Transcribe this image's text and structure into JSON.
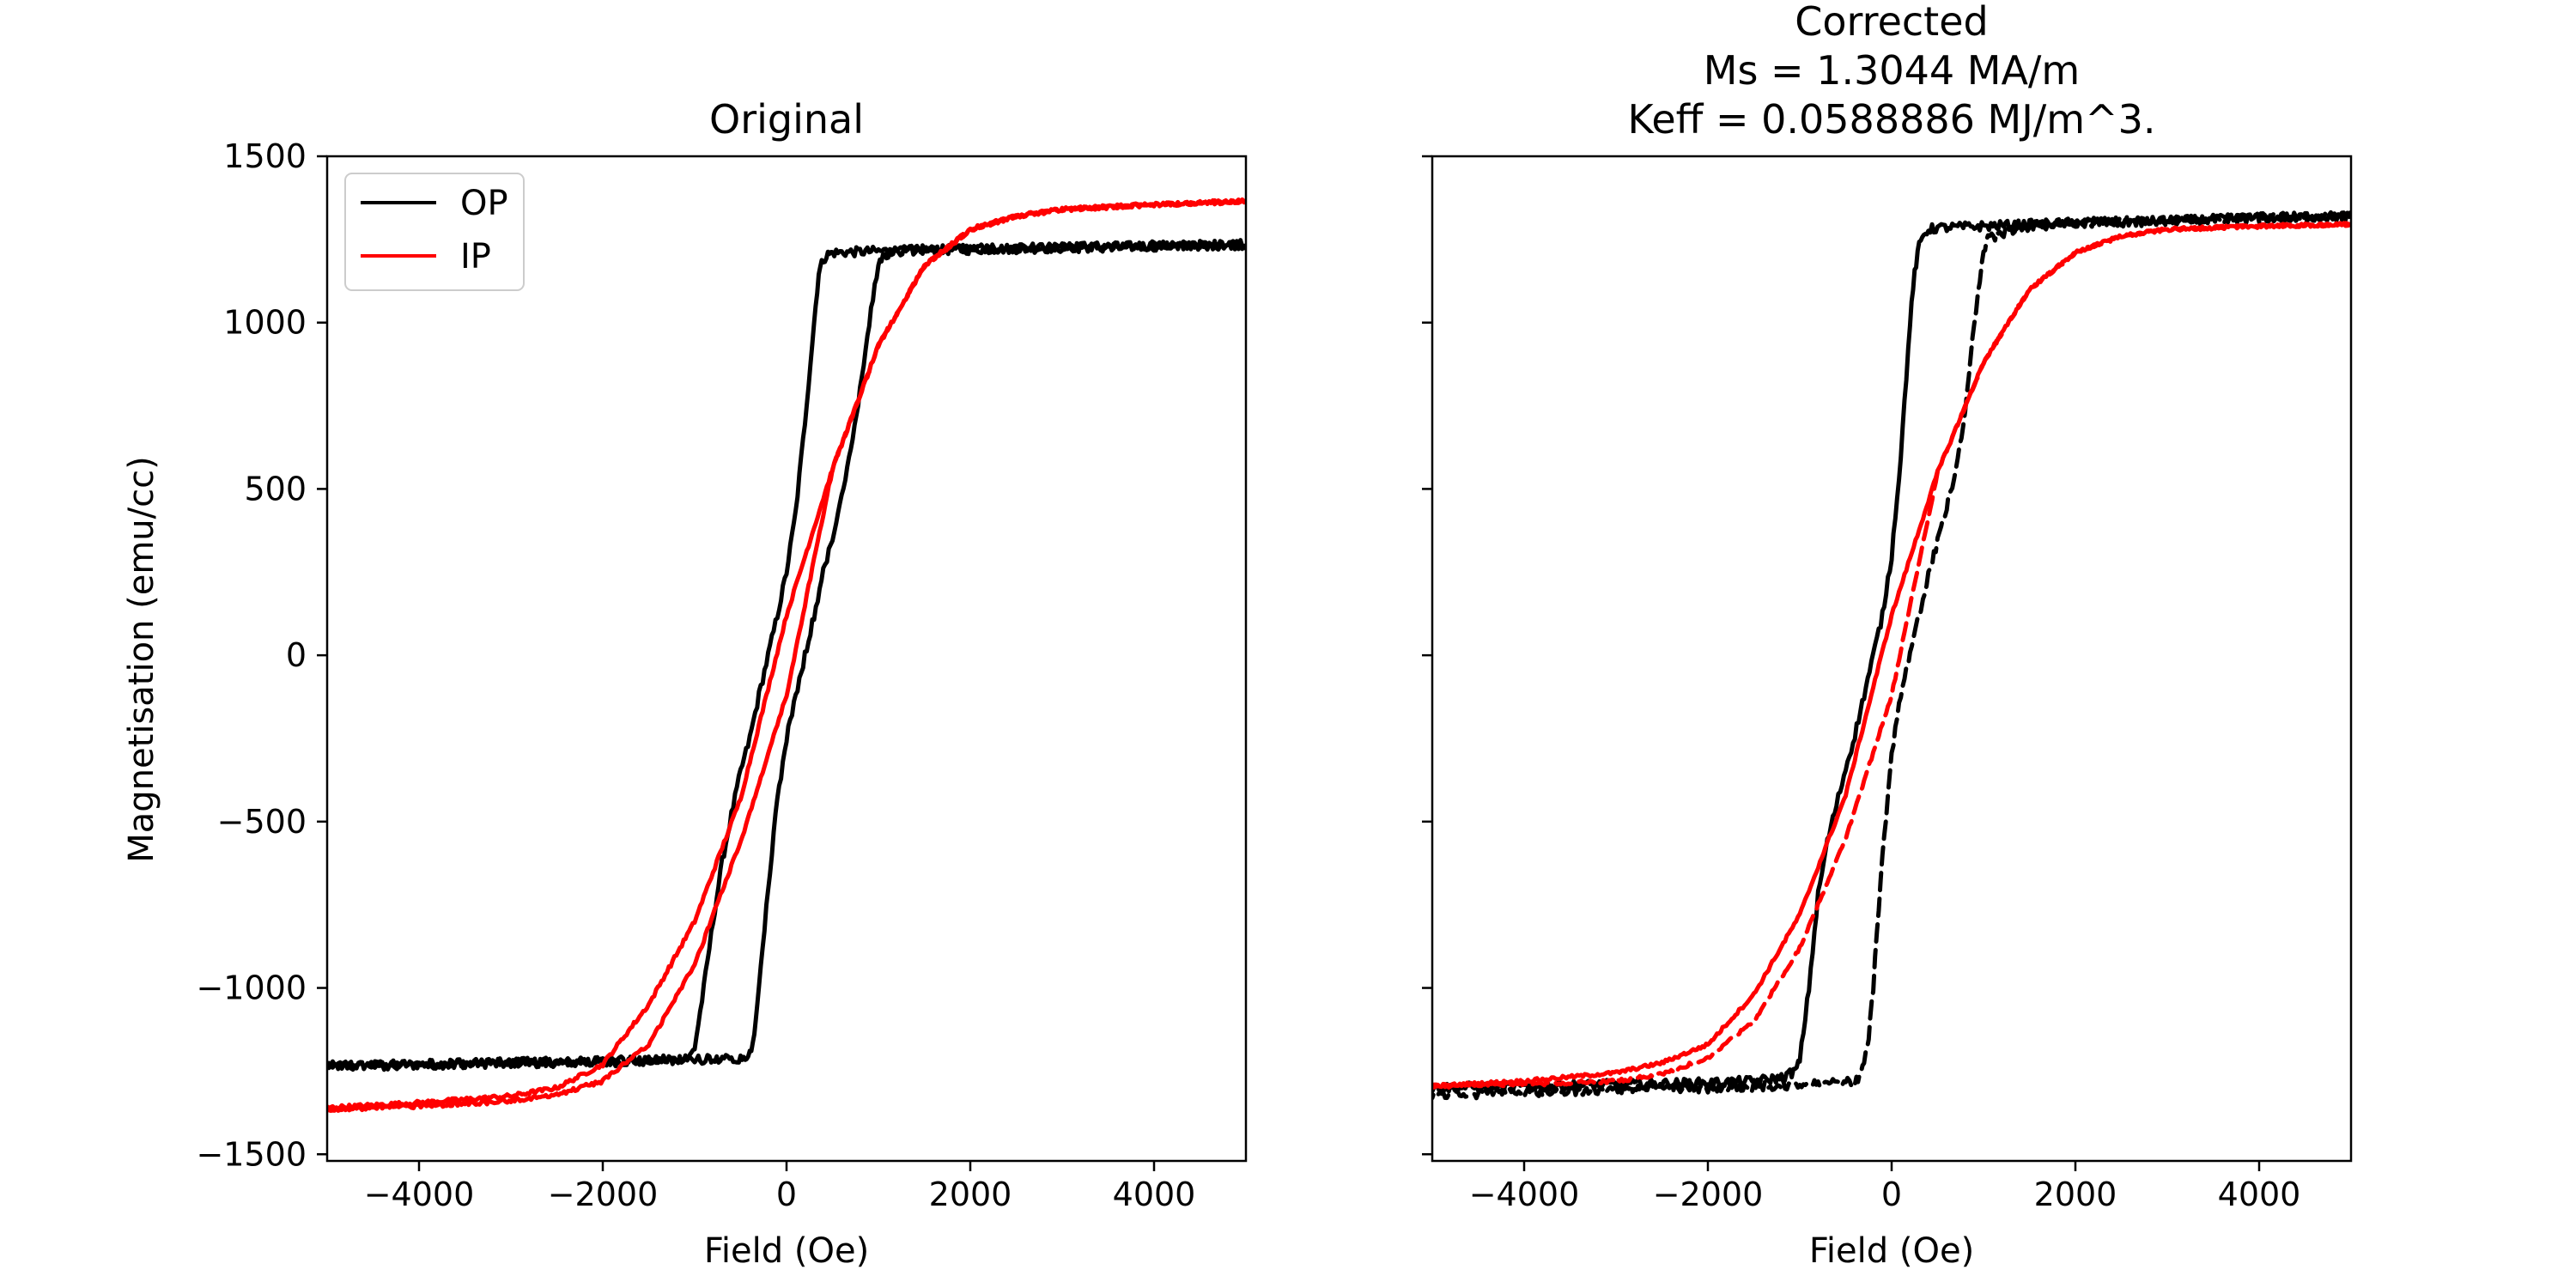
{
  "chart_data": [
    {
      "type": "line",
      "title": "Original",
      "xlabel": "Field (Oe)",
      "ylabel": "Magnetisation (emu/cc)",
      "xlim": [
        -5000,
        5000
      ],
      "ylim": [
        -1520,
        1500
      ],
      "xticks": [
        -4000,
        -2000,
        0,
        2000,
        4000
      ],
      "yticks": [
        -1500,
        -1000,
        -500,
        0,
        500,
        1000,
        1500
      ],
      "xtick_labels": [
        "−4000",
        "−2000",
        "0",
        "2000",
        "4000"
      ],
      "ytick_labels": [
        "−1500",
        "−1000",
        "−500",
        "0",
        "500",
        "1000",
        "1500"
      ],
      "grid": false,
      "legend": {
        "position": "top-left",
        "entries": [
          {
            "label": "OP",
            "color": "#000000"
          },
          {
            "label": "IP",
            "color": "#ff0000"
          }
        ]
      },
      "series": [
        {
          "name": "OP",
          "color": "#000000",
          "style": "solid",
          "noise": 14,
          "x": [
            -5000,
            -4000,
            -3000,
            -2000,
            -1500,
            -1200,
            -1050,
            -1000,
            -900,
            -800,
            -700,
            -600,
            -500,
            -400,
            -300,
            -200,
            -100,
            0,
            100,
            200,
            300,
            350,
            400,
            450,
            500,
            1000,
            2000,
            3000,
            4000,
            5000
          ],
          "y": [
            -1235,
            -1230,
            -1225,
            -1222,
            -1220,
            -1215,
            -1205,
            -1180,
            -1000,
            -800,
            -620,
            -480,
            -350,
            -250,
            -120,
            0,
            120,
            250,
            430,
            700,
            1000,
            1150,
            1190,
            1205,
            1210,
            1215,
            1220,
            1225,
            1230,
            1235
          ]
        },
        {
          "name": "",
          "color": "#000000",
          "style": "solid",
          "noise": 14,
          "x": [
            5000,
            4000,
            3000,
            2000,
            1500,
            1200,
            1050,
            1000,
            900,
            800,
            700,
            600,
            500,
            400,
            300,
            200,
            100,
            0,
            -100,
            -200,
            -300,
            -350,
            -400,
            -450,
            -500,
            -1000,
            -2000,
            -3000,
            -4000,
            -5000
          ],
          "y": [
            1235,
            1230,
            1225,
            1222,
            1220,
            1215,
            1205,
            1180,
            1000,
            800,
            620,
            480,
            350,
            250,
            120,
            0,
            -120,
            -250,
            -430,
            -700,
            -1000,
            -1150,
            -1190,
            -1205,
            -1210,
            -1215,
            -1220,
            -1225,
            -1230,
            -1235
          ]
        },
        {
          "name": "IP",
          "color": "#ff0000",
          "style": "solid",
          "noise": 6,
          "x": [
            -5000,
            -4000,
            -3000,
            -2500,
            -2000,
            -1500,
            -1000,
            -500,
            0,
            500,
            1000,
            1500,
            2000,
            2500,
            3000,
            4000,
            5000
          ],
          "y": [
            -1360,
            -1345,
            -1325,
            -1300,
            -1230,
            -1050,
            -800,
            -430,
            120,
            560,
            930,
            1170,
            1280,
            1320,
            1340,
            1355,
            1365
          ]
        },
        {
          "name": "",
          "color": "#ff0000",
          "style": "solid",
          "noise": 6,
          "x": [
            5000,
            4000,
            3000,
            2500,
            2000,
            1500,
            1000,
            500,
            0,
            -500,
            -1000,
            -1500,
            -2000,
            -2500,
            -3000,
            -4000,
            -5000
          ],
          "y": [
            1365,
            1355,
            1340,
            1320,
            1280,
            1170,
            930,
            560,
            -120,
            -560,
            -930,
            -1170,
            -1280,
            -1320,
            -1340,
            -1355,
            -1365
          ]
        }
      ]
    },
    {
      "type": "line",
      "title": "Corrected",
      "subtitle_lines": [
        "Ms = 1.3044 MA/m",
        "Keff = 0.0588886 MJ/m^3."
      ],
      "xlabel": "Field (Oe)",
      "ylabel": "",
      "xlim": [
        -5000,
        5000
      ],
      "ylim": [
        -1520,
        1500
      ],
      "xticks": [
        -4000,
        -2000,
        0,
        2000,
        4000
      ],
      "yticks": [
        -1500,
        -1000,
        -500,
        0,
        500,
        1000,
        1500
      ],
      "xtick_labels": [
        "−4000",
        "−2000",
        "0",
        "2000",
        "4000"
      ],
      "ytick_labels": [],
      "grid": false,
      "series": [
        {
          "name": "",
          "color": "#000000",
          "style": "solid",
          "noise": 14,
          "x": [
            -5000,
            -4000,
            -3000,
            -2000,
            -1500,
            -1200,
            -1050,
            -1000,
            -900,
            -800,
            -700,
            -600,
            -500,
            -400,
            -300,
            -200,
            -100,
            0,
            100,
            200,
            250,
            300,
            350,
            400,
            500,
            1000,
            2000,
            3000,
            4000,
            5000
          ],
          "y": [
            -1300,
            -1295,
            -1290,
            -1285,
            -1280,
            -1270,
            -1250,
            -1220,
            -1000,
            -720,
            -560,
            -450,
            -340,
            -240,
            -120,
            0,
            120,
            300,
            600,
            1000,
            1150,
            1230,
            1265,
            1280,
            1285,
            1290,
            1300,
            1305,
            1315,
            1320
          ]
        },
        {
          "name": "",
          "color": "#000000",
          "style": "dashed",
          "noise": 14,
          "x": [
            5000,
            4000,
            3000,
            2000,
            1500,
            1200,
            1050,
            1000,
            900,
            800,
            700,
            600,
            500,
            400,
            300,
            200,
            100,
            0,
            -100,
            -200,
            -250,
            -300,
            -350,
            -400,
            -500,
            -1000,
            -2000,
            -3000,
            -4000,
            -5000
          ],
          "y": [
            1320,
            1315,
            1305,
            1300,
            1290,
            1270,
            1250,
            1220,
            1000,
            720,
            560,
            450,
            340,
            240,
            120,
            0,
            -120,
            -300,
            -600,
            -1000,
            -1150,
            -1230,
            -1265,
            -1280,
            -1285,
            -1290,
            -1300,
            -1305,
            -1315,
            -1320
          ]
        },
        {
          "name": "",
          "color": "#ff0000",
          "style": "solid",
          "noise": 5,
          "x": [
            -5000,
            -4000,
            -3000,
            -2500,
            -2000,
            -1500,
            -1000,
            -500,
            0,
            500,
            1000,
            1500,
            2000,
            2500,
            3000,
            4000,
            5000
          ],
          "y": [
            -1295,
            -1280,
            -1255,
            -1225,
            -1170,
            -1020,
            -780,
            -420,
            120,
            550,
            880,
            1100,
            1210,
            1260,
            1280,
            1290,
            1295
          ]
        },
        {
          "name": "",
          "color": "#ff0000",
          "style": "dashed",
          "noise": 5,
          "x": [
            5000,
            4000,
            3000,
            2500,
            2000,
            1500,
            1000,
            500,
            0,
            -500,
            -1000,
            -1500,
            -2000,
            -2500,
            -3000,
            -4000,
            -5000
          ],
          "y": [
            1295,
            1290,
            1280,
            1260,
            1210,
            1100,
            880,
            550,
            -120,
            -550,
            -880,
            -1100,
            -1210,
            -1260,
            -1280,
            -1290,
            -1295
          ]
        }
      ]
    }
  ]
}
